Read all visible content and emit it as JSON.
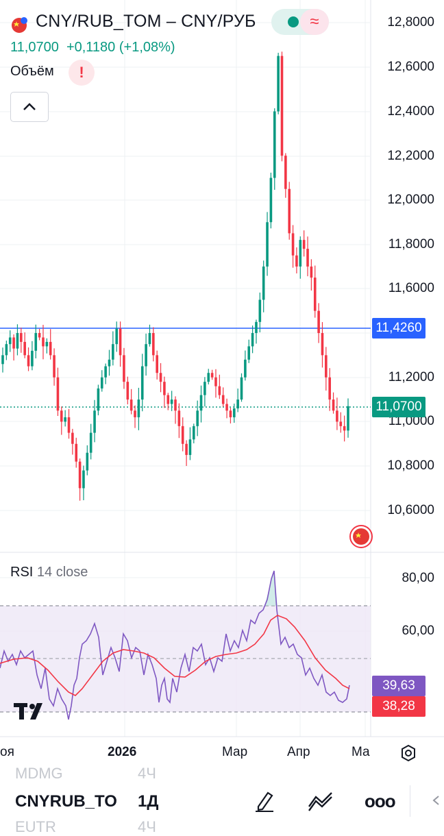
{
  "header": {
    "symbol_title": "CNY/RUB_TOM – CNY/РУБ",
    "last_price": "11,0700",
    "change": "+0,1180 (+1,08%)",
    "volume_label": "Объём",
    "warning_symbol": "!",
    "collapse_symbol": "^",
    "colors": {
      "up": "#089981",
      "down": "#f23645",
      "line": "#2962ff"
    }
  },
  "price_axis": {
    "labels": [
      "12,8000",
      "12,6000",
      "12,4000",
      "12,2000",
      "12,0000",
      "11,8000",
      "11,6000",
      "11,2000",
      "11,0000",
      "10,8000",
      "10,6000"
    ],
    "hline_tag": "11,4260",
    "last_tag": "11,0700"
  },
  "rsi": {
    "title": "RSI",
    "params": "14 close",
    "axis_labels": [
      "80,00",
      "60,00"
    ],
    "rsi_value": "39,63",
    "ma_value": "38,28",
    "colors": {
      "rsi": "#7e57c2",
      "ma": "#f23645",
      "band": "#ede7f6"
    }
  },
  "time_axis": {
    "labels": [
      "оя",
      "2026",
      "Мар",
      "Апр",
      "Ма"
    ]
  },
  "bottom_toolbar": {
    "partial_top_left": "MDMG",
    "partial_top_right": "4Ч",
    "symbol": "CNYRUB_TO",
    "interval": "1Д",
    "more": "ooo",
    "partial_bottom_left": "EUTR",
    "partial_bottom_right": "4Ч"
  },
  "chart_data": {
    "type": "candlestick",
    "x_range": [
      "2025-11",
      "2026-05"
    ],
    "y_range": [
      10.5,
      12.8
    ],
    "horizontal_line": 11.426,
    "last_close": 11.07,
    "close": [
      11.3,
      11.35,
      11.38,
      11.33,
      11.4,
      11.36,
      11.3,
      11.25,
      11.32,
      11.4,
      11.38,
      11.34,
      11.36,
      11.3,
      11.2,
      11.05,
      11.0,
      11.02,
      10.95,
      10.9,
      10.82,
      10.7,
      10.78,
      10.86,
      10.95,
      11.05,
      11.15,
      11.2,
      11.25,
      11.28,
      11.35,
      11.42,
      11.3,
      11.18,
      11.1,
      11.05,
      11.02,
      11.1,
      11.25,
      11.35,
      11.4,
      11.3,
      11.22,
      11.18,
      11.12,
      11.08,
      11.1,
      11.05,
      10.98,
      10.9,
      10.85,
      10.92,
      10.98,
      11.05,
      11.12,
      11.18,
      11.22,
      11.2,
      11.16,
      11.12,
      11.08,
      11.05,
      11.02,
      11.06,
      11.1,
      11.2,
      11.28,
      11.34,
      11.4,
      11.45,
      11.55,
      11.7,
      11.9,
      12.1,
      12.4,
      12.65,
      12.2,
      12.05,
      11.85,
      11.75,
      11.7,
      11.82,
      11.78,
      11.7,
      11.65,
      11.5,
      11.4,
      11.3,
      11.2,
      11.1,
      11.05,
      11.0,
      10.98,
      10.96,
      11.07
    ]
  }
}
